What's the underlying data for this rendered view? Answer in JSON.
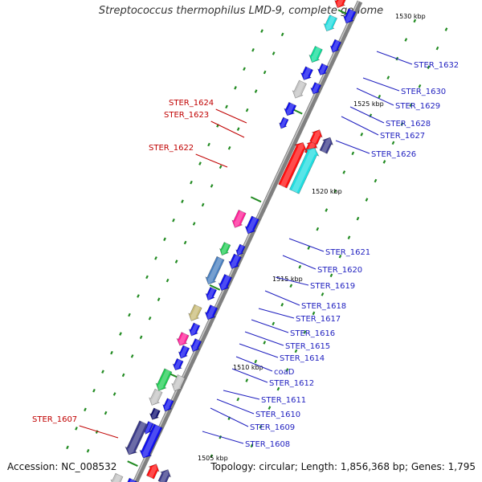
{
  "title": "Streptococcus thermophilus LMD-9, complete genome",
  "footer": {
    "accession": "Accession: NC_008532",
    "summary": "Topology: circular; Length: 1,856,368 bp; Genes: 1,795"
  },
  "colors": {
    "label_forward": "#c00000",
    "label_reverse": "#1f1fbf",
    "tick_label": "#000000",
    "track_dots": "#228b22",
    "backbone": "#808080",
    "blue": "#1010ee",
    "indigo": "#3b3b8a",
    "cyan": "#22dde0",
    "red": "#ff1010",
    "green": "#22cc55",
    "teal": "#11dd99",
    "steel": "#4a80c0",
    "gray": "#c4c4c4",
    "khaki": "#c8bb77",
    "magenta": "#ff2299",
    "navy": "#101070"
  },
  "scale_ticks": [
    "1530 kbp",
    "1525 kbp",
    "1520 kbp",
    "1515 kbp",
    "1510 kbp",
    "1505 kbp"
  ],
  "genes": [
    {
      "id": "STER_1632",
      "strand": "reverse",
      "color": "cyan"
    },
    {
      "id": "STER_1630",
      "strand": "reverse",
      "color": "teal"
    },
    {
      "id": "STER_1629",
      "strand": "reverse",
      "color": "blue"
    },
    {
      "id": "STER_1628",
      "strand": "reverse",
      "color": "gray"
    },
    {
      "id": "STER_1627",
      "strand": "reverse",
      "color": "blue"
    },
    {
      "id": "STER_1626",
      "strand": "reverse",
      "color": "blue"
    },
    {
      "id": "STER_1624",
      "strand": "forward",
      "color": "red"
    },
    {
      "id": "STER_1623",
      "strand": "forward",
      "color": "indigo"
    },
    {
      "id": "STER_1622",
      "strand": "forward",
      "color": "cyan"
    },
    {
      "id": "STER_1621",
      "strand": "reverse",
      "color": "magenta"
    },
    {
      "id": "STER_1620",
      "strand": "reverse",
      "color": "green"
    },
    {
      "id": "STER_1619",
      "strand": "reverse",
      "color": "steel"
    },
    {
      "id": "STER_1618",
      "strand": "reverse",
      "color": "blue"
    },
    {
      "id": "STER_1617",
      "strand": "reverse",
      "color": "khaki"
    },
    {
      "id": "STER_1616",
      "strand": "reverse",
      "color": "blue"
    },
    {
      "id": "STER_1615",
      "strand": "reverse",
      "color": "magenta"
    },
    {
      "id": "STER_1614",
      "strand": "reverse",
      "color": "blue"
    },
    {
      "id": "coaD",
      "strand": "reverse",
      "color": "blue"
    },
    {
      "id": "STER_1612",
      "strand": "reverse",
      "color": "green"
    },
    {
      "id": "STER_1611",
      "strand": "reverse",
      "color": "gray"
    },
    {
      "id": "STER_1610",
      "strand": "reverse",
      "color": "navy"
    },
    {
      "id": "STER_1609",
      "strand": "reverse",
      "color": "blue"
    },
    {
      "id": "STER_1608",
      "strand": "reverse",
      "color": "indigo"
    },
    {
      "id": "STER_1607",
      "strand": "forward",
      "color": "indigo"
    }
  ]
}
